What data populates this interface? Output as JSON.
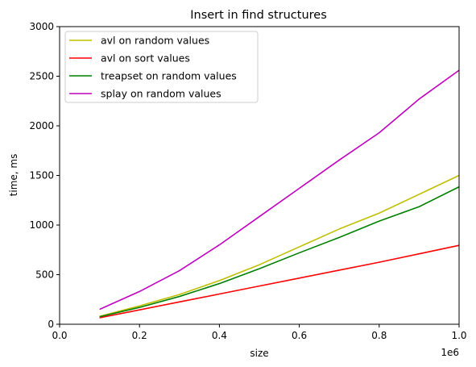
{
  "chart_data": {
    "type": "line",
    "title": "Insert in find structures",
    "xlabel": "size",
    "ylabel": "time, ms",
    "x_offset_label": "1e6",
    "xlim": [
      0.0,
      1.0
    ],
    "ylim": [
      0,
      3000
    ],
    "x_ticks": [
      "0.0",
      "0.2",
      "0.4",
      "0.6",
      "0.8",
      "1.0"
    ],
    "y_ticks": [
      "0",
      "500",
      "1000",
      "1500",
      "2000",
      "2500",
      "3000"
    ],
    "grid": false,
    "legend_position": "upper-left",
    "x": [
      0.1,
      0.2,
      0.3,
      0.4,
      0.5,
      0.6,
      0.7,
      0.8,
      0.9,
      1.0
    ],
    "series": [
      {
        "name": "avl on random values",
        "color": "#bfbf00",
        "values": [
          80,
          185,
          300,
          440,
          600,
          780,
          960,
          1120,
          1310,
          1500
        ]
      },
      {
        "name": "avl on sort values",
        "color": "#ff0000",
        "values": [
          65,
          145,
          225,
          305,
          385,
          465,
          545,
          625,
          710,
          795
        ]
      },
      {
        "name": "treapset on random values",
        "color": "#008000",
        "values": [
          75,
          170,
          280,
          410,
          560,
          720,
          875,
          1040,
          1185,
          1385
        ]
      },
      {
        "name": "splay on random values",
        "color": "#bf00bf",
        "values": [
          150,
          330,
          540,
          800,
          1085,
          1370,
          1655,
          1930,
          2270,
          2560
        ]
      }
    ]
  }
}
